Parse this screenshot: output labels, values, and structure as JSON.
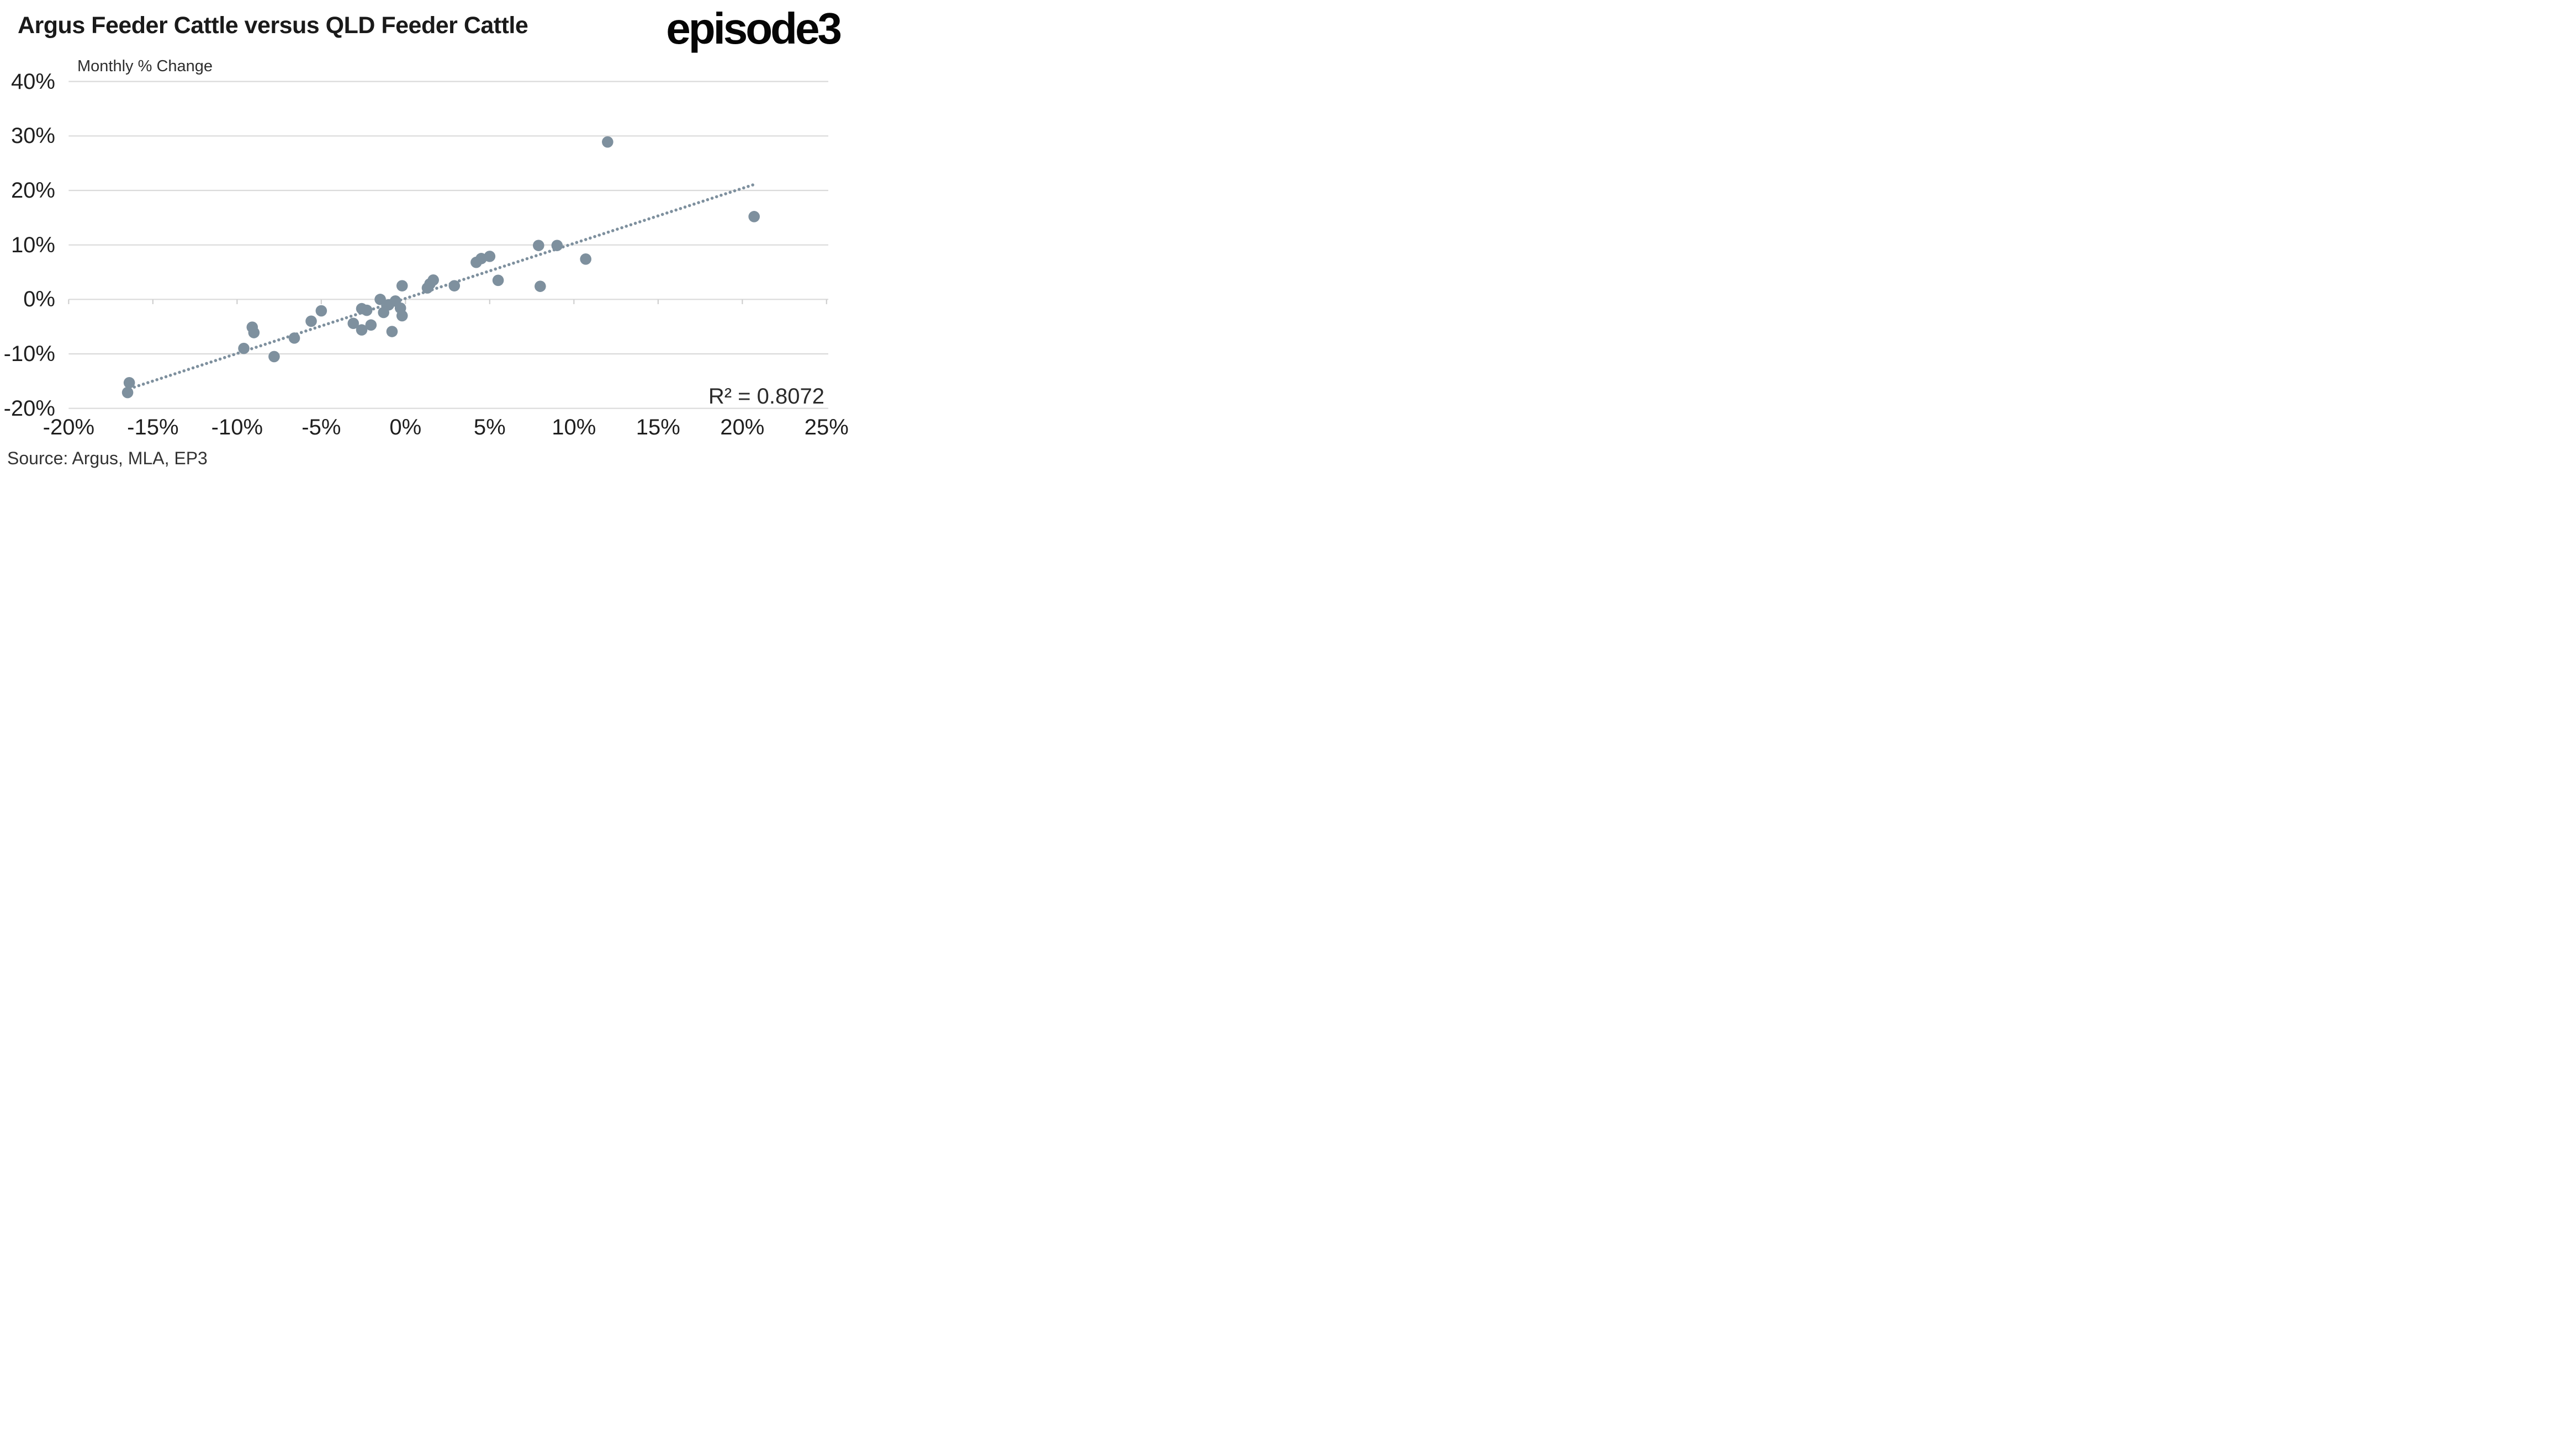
{
  "title": "Argus Feeder Cattle versus QLD Feeder Cattle",
  "logo_text": "episode3",
  "subtitle": "Monthly % Change",
  "source_note": "Source: Argus, MLA, EP3",
  "annotation": {
    "r_squared_label": "R² = 0.8072"
  },
  "colors": {
    "point": "#7E909E",
    "trendline": "#7E909E",
    "gridline": "#DADADA",
    "tick": "#CFCFCF",
    "title": "#1A1A1A",
    "axis_label": "#1F1F1F",
    "background": "#FFFFFF"
  },
  "chart_data": {
    "type": "scatter",
    "title": "Argus Feeder Cattle versus QLD Feeder Cattle",
    "subtitle_unit": "Monthly % Change",
    "xlim": [
      -20,
      25
    ],
    "ylim": [
      -20,
      40
    ],
    "x_tick_values": [
      -20,
      -15,
      -10,
      -5,
      0,
      5,
      10,
      15,
      20,
      25
    ],
    "x_tick_labels": [
      "-20%",
      "-15%",
      "-10%",
      "-5%",
      "0%",
      "5%",
      "10%",
      "15%",
      "20%",
      "25%"
    ],
    "y_tick_values": [
      40,
      30,
      20,
      10,
      0,
      -10,
      -20
    ],
    "y_tick_labels": [
      "40%",
      "30%",
      "20%",
      "10%",
      "0%",
      "-10%",
      "-20%"
    ],
    "grid": "horizontal",
    "legend_position": "none",
    "r_squared": 0.8072,
    "points": [
      [
        -16.4,
        -15.3
      ],
      [
        -16.5,
        -17.1
      ],
      [
        -9.6,
        -9.0
      ],
      [
        -9.1,
        -5.1
      ],
      [
        -9.0,
        -6.1
      ],
      [
        -7.8,
        -10.5
      ],
      [
        -6.6,
        -7.1
      ],
      [
        -5.6,
        -4.0
      ],
      [
        -5.0,
        -2.1
      ],
      [
        -3.1,
        -4.4
      ],
      [
        -2.6,
        -5.6
      ],
      [
        -2.05,
        -4.7
      ],
      [
        -2.6,
        -1.7
      ],
      [
        -2.3,
        -2.0
      ],
      [
        -1.5,
        0.0
      ],
      [
        -1.0,
        -1.0
      ],
      [
        -1.3,
        -2.4
      ],
      [
        -0.6,
        -0.3
      ],
      [
        -0.3,
        -1.6
      ],
      [
        -0.2,
        -3.0
      ],
      [
        -0.2,
        2.5
      ],
      [
        -0.8,
        -5.9
      ],
      [
        1.3,
        2.1
      ],
      [
        1.45,
        2.85
      ],
      [
        1.65,
        3.55
      ],
      [
        2.9,
        2.5
      ],
      [
        4.2,
        6.8
      ],
      [
        4.5,
        7.5
      ],
      [
        5.0,
        7.9
      ],
      [
        5.5,
        3.5
      ],
      [
        7.9,
        9.9
      ],
      [
        9.0,
        9.9
      ],
      [
        10.7,
        7.4
      ],
      [
        8.0,
        2.4
      ],
      [
        12.0,
        28.9
      ],
      [
        20.7,
        15.2
      ]
    ],
    "trendline": {
      "style": "dotted",
      "x1": -16.1,
      "y1": -16.1,
      "x2": 20.8,
      "y2": 21.2
    }
  }
}
